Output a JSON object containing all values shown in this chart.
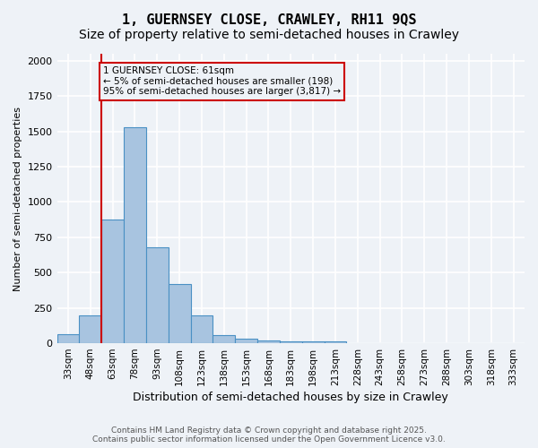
{
  "title": "1, GUERNSEY CLOSE, CRAWLEY, RH11 9QS",
  "subtitle": "Size of property relative to semi-detached houses in Crawley",
  "xlabel": "Distribution of semi-detached houses by size in Crawley",
  "ylabel": "Number of semi-detached properties",
  "bin_labels": [
    "33sqm",
    "48sqm",
    "63sqm",
    "78sqm",
    "93sqm",
    "108sqm",
    "123sqm",
    "138sqm",
    "153sqm",
    "168sqm",
    "183sqm",
    "198sqm",
    "213sqm",
    "228sqm",
    "243sqm",
    "258sqm",
    "273sqm",
    "288sqm",
    "303sqm",
    "318sqm",
    "333sqm"
  ],
  "bar_values": [
    65,
    198,
    875,
    1530,
    680,
    420,
    195,
    60,
    30,
    20,
    15,
    15,
    15,
    0,
    0,
    0,
    0,
    0,
    0,
    0,
    0
  ],
  "bar_color": "#a8c4e0",
  "bar_edge_color": "#4a90c4",
  "vline_x_index": 2,
  "vline_color": "#cc0000",
  "annotation_text": "1 GUERNSEY CLOSE: 61sqm\n← 5% of semi-detached houses are smaller (198)\n95% of semi-detached houses are larger (3,817) →",
  "annotation_box_color": "#cc0000",
  "ylim": [
    0,
    2050
  ],
  "footer_line1": "Contains HM Land Registry data © Crown copyright and database right 2025.",
  "footer_line2": "Contains public sector information licensed under the Open Government Licence v3.0.",
  "background_color": "#eef2f7",
  "grid_color": "#ffffff",
  "title_fontsize": 11,
  "subtitle_fontsize": 10
}
